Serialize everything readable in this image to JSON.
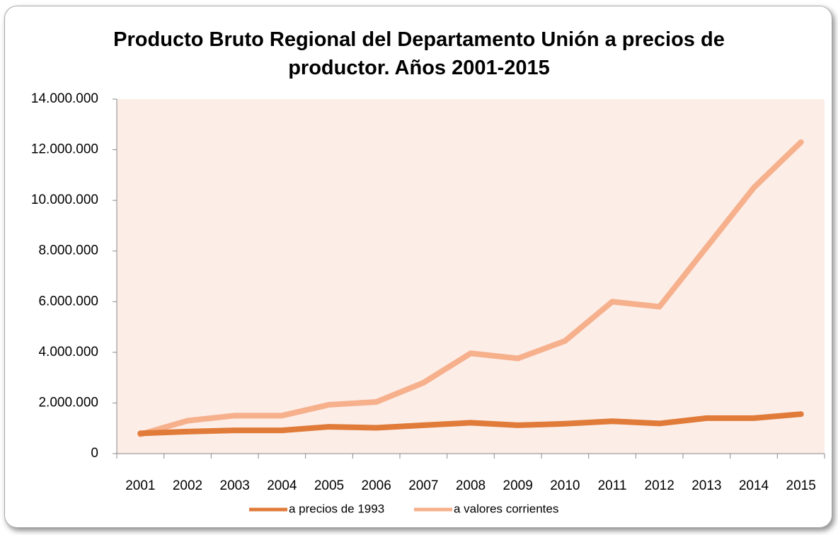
{
  "chart_data": {
    "type": "line",
    "title": "Producto Bruto Regional del Departamento Unión a precios de productor. Años 2001-2015",
    "categories": [
      "2001",
      "2002",
      "2003",
      "2004",
      "2005",
      "2006",
      "2007",
      "2008",
      "2009",
      "2010",
      "2011",
      "2012",
      "2013",
      "2014",
      "2015"
    ],
    "series": [
      {
        "name": "a precios de 1993",
        "color": "#e07b39",
        "values": [
          800000,
          870000,
          920000,
          920000,
          1060000,
          1020000,
          1120000,
          1220000,
          1120000,
          1180000,
          1280000,
          1190000,
          1400000,
          1400000,
          1560000
        ]
      },
      {
        "name": "a valores corrientes",
        "color": "#f6b08c",
        "values": [
          760000,
          1300000,
          1500000,
          1500000,
          1930000,
          2040000,
          2800000,
          3960000,
          3760000,
          4450000,
          6000000,
          5800000,
          8150000,
          10500000,
          12300000
        ]
      }
    ],
    "ylim": [
      0,
      14000000
    ],
    "yticks": [
      0,
      {
        "value": 2000000,
        "label": "2.000.000"
      },
      {
        "value": 4000000,
        "label": "4.000.000"
      },
      {
        "value": 6000000,
        "label": "6.000.000"
      },
      {
        "value": 8000000,
        "label": "8.000.000"
      },
      {
        "value": 10000000,
        "label": "10.000.000"
      },
      {
        "value": 12000000,
        "label": "12.000.000"
      },
      {
        "value": 14000000,
        "label": "14.000.000"
      }
    ],
    "plot_background": "#fcede7",
    "legend": "bottom"
  }
}
